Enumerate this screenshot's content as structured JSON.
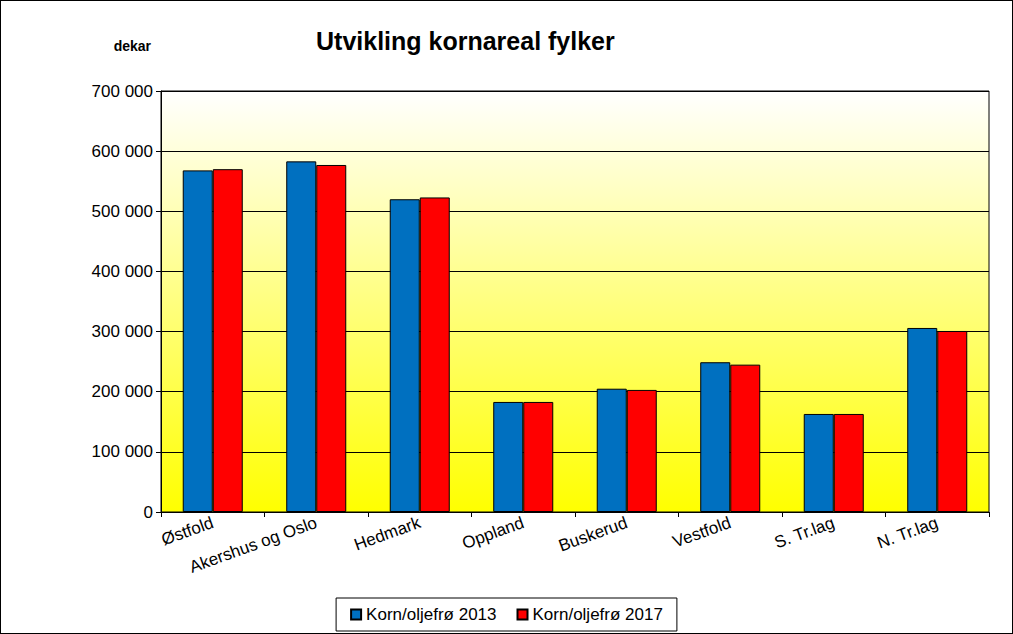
{
  "chart_data": {
    "type": "bar",
    "title": "Utvikling kornareal fylker",
    "y_label": "dekar",
    "categories": [
      "Østfold",
      "Akershus og Oslo",
      "Hedmark",
      "Oppland",
      "Buskerud",
      "Vestfold",
      "S. Tr.lag",
      "N. Tr.lag"
    ],
    "series": [
      {
        "name": "Korn/oljefrø 2013",
        "color": "#0070c0",
        "values": [
          568000,
          583000,
          520000,
          183000,
          205000,
          249000,
          163000,
          306000
        ]
      },
      {
        "name": "Korn/oljefrø 2017",
        "color": "#ff0000",
        "values": [
          570000,
          577000,
          523000,
          183000,
          203000,
          245000,
          163000,
          301000
        ]
      }
    ],
    "ylim": [
      0,
      700000
    ],
    "yticks": [
      0,
      {
        "value": 100000,
        "label": "100 000"
      },
      {
        "value": 200000,
        "label": "200 000"
      },
      {
        "value": 300000,
        "label": "300 000"
      },
      {
        "value": 400000,
        "label": "400 000"
      },
      {
        "value": 500000,
        "label": "500 000"
      },
      {
        "value": 600000,
        "label": "600 000"
      },
      {
        "value": 700000,
        "label": "700 000"
      }
    ],
    "grid": true,
    "legend": "bottom"
  }
}
